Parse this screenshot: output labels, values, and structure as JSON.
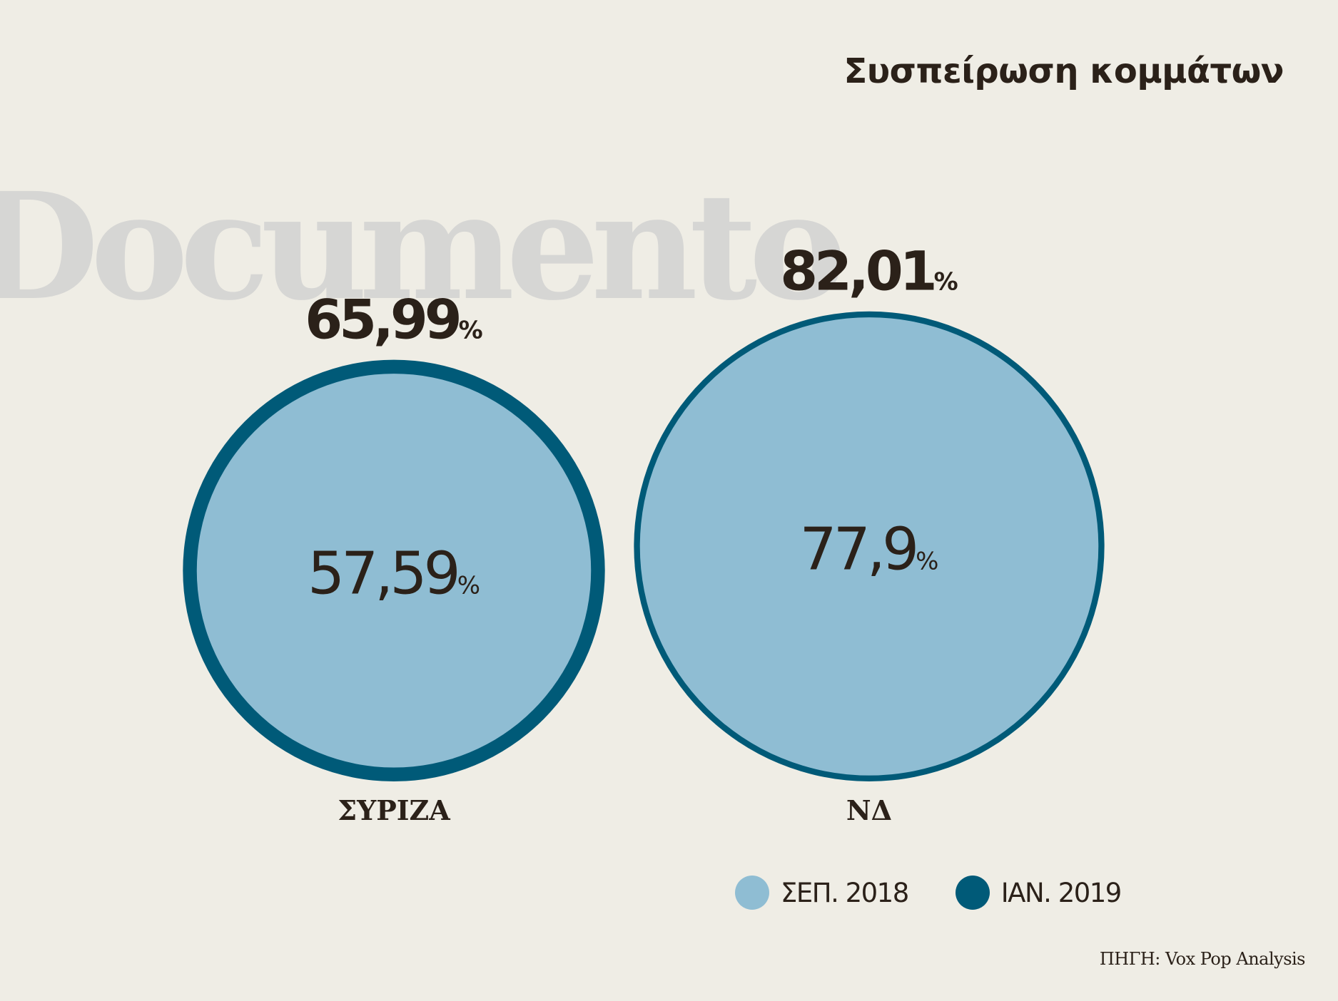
{
  "title": "Συσπείρωση κομμάτων",
  "watermark": "Documento",
  "source": "ΠΗΓΗ: Vox Pop Analysis",
  "colors": {
    "background": "#efede5",
    "sep2018": "#8fbdd3",
    "jan2019": "#005a78",
    "text": "#2b2119",
    "watermark": "#d6d6d4"
  },
  "legend": [
    {
      "label": "ΣΕΠ. 2018",
      "color": "#8fbdd3"
    },
    {
      "label": "ΙΑΝ. 2019",
      "color": "#005a78"
    }
  ],
  "chart_data": {
    "type": "bubble",
    "title": "Συσπείρωση κομμάτων",
    "unit": "%",
    "series": [
      {
        "name": "ΣΕΠ. 2018",
        "color": "#8fbdd3"
      },
      {
        "name": "ΙΑΝ. 2019",
        "color": "#005a78"
      }
    ],
    "categories": [
      "ΣΥΡΙΖΑ",
      "ΝΔ"
    ],
    "points": [
      {
        "party": "ΣΥΡΙΖΑ",
        "sep2018": 57.59,
        "jan2019": 65.99,
        "sep2018_label": "57,59",
        "jan2019_label": "65,99"
      },
      {
        "party": "ΝΔ",
        "sep2018": 77.9,
        "jan2019": 82.01,
        "sep2018_label": "77,9",
        "jan2019_label": "82,01"
      }
    ]
  }
}
